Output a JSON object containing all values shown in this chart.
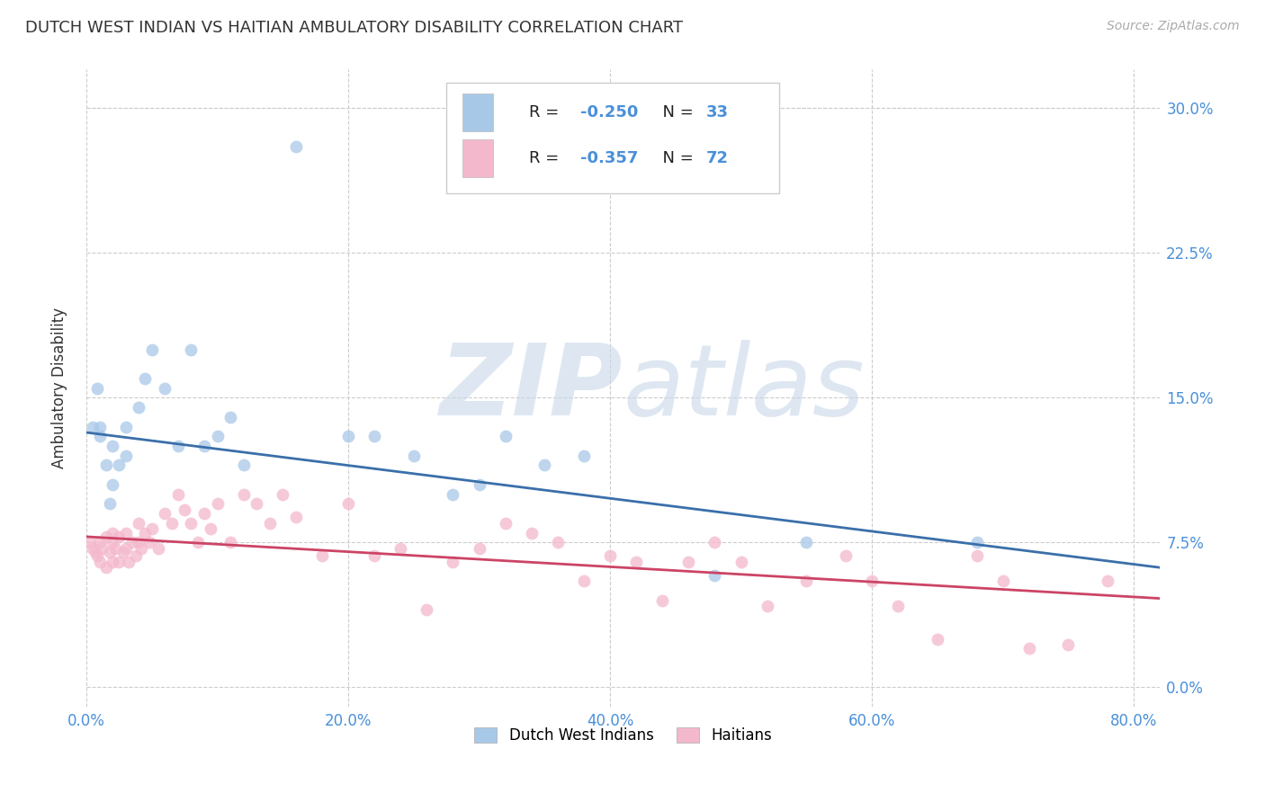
{
  "title": "DUTCH WEST INDIAN VS HAITIAN AMBULATORY DISABILITY CORRELATION CHART",
  "source": "Source: ZipAtlas.com",
  "ylabel": "Ambulatory Disability",
  "xlabel_ticks": [
    "0.0%",
    "20.0%",
    "40.0%",
    "60.0%",
    "80.0%"
  ],
  "ylabel_ticks": [
    "0.0%",
    "7.5%",
    "15.0%",
    "22.5%",
    "30.0%"
  ],
  "xlim": [
    0.0,
    0.82
  ],
  "ylim": [
    -0.01,
    0.32
  ],
  "ytick_vals": [
    0.0,
    0.075,
    0.15,
    0.225,
    0.3
  ],
  "xtick_vals": [
    0.0,
    0.2,
    0.4,
    0.6,
    0.8
  ],
  "blue_color": "#a8c8e8",
  "pink_color": "#f4b8cc",
  "blue_line_color": "#3a6faa",
  "pink_line_color": "#cc4466",
  "blue_R": "-0.250",
  "blue_N": "33",
  "pink_R": "-0.357",
  "pink_N": "72",
  "legend_label_blue": "Dutch West Indians",
  "legend_label_pink": "Haitians",
  "watermark_zip": "ZIP",
  "watermark_atlas": "atlas",
  "blue_scatter_x": [
    0.005,
    0.008,
    0.01,
    0.01,
    0.015,
    0.018,
    0.02,
    0.02,
    0.025,
    0.03,
    0.03,
    0.04,
    0.045,
    0.05,
    0.06,
    0.07,
    0.08,
    0.09,
    0.1,
    0.11,
    0.12,
    0.16,
    0.2,
    0.22,
    0.25,
    0.28,
    0.3,
    0.32,
    0.35,
    0.38,
    0.48,
    0.55,
    0.68
  ],
  "blue_scatter_y": [
    0.135,
    0.155,
    0.135,
    0.13,
    0.115,
    0.095,
    0.125,
    0.105,
    0.115,
    0.135,
    0.12,
    0.145,
    0.16,
    0.175,
    0.155,
    0.125,
    0.175,
    0.125,
    0.13,
    0.14,
    0.115,
    0.28,
    0.13,
    0.13,
    0.12,
    0.1,
    0.105,
    0.13,
    0.115,
    0.12,
    0.058,
    0.075,
    0.075
  ],
  "pink_scatter_x": [
    0.003,
    0.005,
    0.007,
    0.008,
    0.01,
    0.01,
    0.012,
    0.015,
    0.015,
    0.018,
    0.02,
    0.02,
    0.02,
    0.022,
    0.025,
    0.025,
    0.028,
    0.03,
    0.03,
    0.032,
    0.035,
    0.038,
    0.04,
    0.04,
    0.042,
    0.045,
    0.048,
    0.05,
    0.055,
    0.06,
    0.065,
    0.07,
    0.075,
    0.08,
    0.085,
    0.09,
    0.095,
    0.1,
    0.11,
    0.12,
    0.13,
    0.14,
    0.15,
    0.16,
    0.18,
    0.2,
    0.22,
    0.24,
    0.26,
    0.28,
    0.3,
    0.32,
    0.34,
    0.36,
    0.38,
    0.4,
    0.42,
    0.44,
    0.46,
    0.48,
    0.5,
    0.52,
    0.55,
    0.58,
    0.6,
    0.62,
    0.65,
    0.68,
    0.7,
    0.72,
    0.75,
    0.78
  ],
  "pink_scatter_y": [
    0.075,
    0.072,
    0.07,
    0.068,
    0.075,
    0.065,
    0.072,
    0.078,
    0.062,
    0.07,
    0.08,
    0.075,
    0.065,
    0.072,
    0.078,
    0.065,
    0.07,
    0.08,
    0.072,
    0.065,
    0.075,
    0.068,
    0.085,
    0.075,
    0.072,
    0.08,
    0.075,
    0.082,
    0.072,
    0.09,
    0.085,
    0.1,
    0.092,
    0.085,
    0.075,
    0.09,
    0.082,
    0.095,
    0.075,
    0.1,
    0.095,
    0.085,
    0.1,
    0.088,
    0.068,
    0.095,
    0.068,
    0.072,
    0.04,
    0.065,
    0.072,
    0.085,
    0.08,
    0.075,
    0.055,
    0.068,
    0.065,
    0.045,
    0.065,
    0.075,
    0.065,
    0.042,
    0.055,
    0.068,
    0.055,
    0.042,
    0.025,
    0.068,
    0.055,
    0.02,
    0.022,
    0.055
  ],
  "blue_line_x": [
    0.0,
    0.82
  ],
  "blue_line_y": [
    0.132,
    0.062
  ],
  "pink_line_x": [
    0.0,
    0.82
  ],
  "pink_line_y": [
    0.078,
    0.046
  ],
  "bg_color": "#ffffff",
  "grid_color": "#cccccc",
  "title_color": "#333333",
  "tick_color": "#4a90d9",
  "label_color": "#333333",
  "rn_label_color": "#333333",
  "rn_value_color": "#4a90d9"
}
